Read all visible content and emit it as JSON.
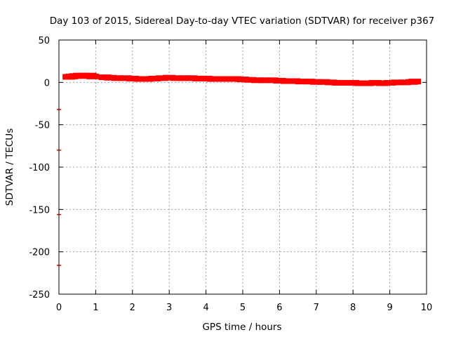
{
  "chart_data": {
    "type": "scatter",
    "title": "Day 103 of 2015, Sidereal Day-to-day VTEC variation (SDTVAR) for receiver p367",
    "xlabel": "GPS time / hours",
    "ylabel": "SDTVAR / TECUs",
    "xlim": [
      0,
      10
    ],
    "ylim": [
      -250,
      50
    ],
    "grid": true,
    "xticks": [
      0,
      1,
      2,
      3,
      4,
      5,
      6,
      7,
      8,
      9,
      10
    ],
    "yticks": [
      50,
      0,
      -50,
      -100,
      -150,
      -200,
      -250
    ],
    "colors": {
      "series": "#ff0000",
      "grid": "#a0a0a0",
      "axis": "#000000"
    },
    "series": [
      {
        "name": "SDTVAR",
        "x": [
          0.27,
          0.35,
          0.45,
          0.55,
          0.65,
          0.75,
          0.85,
          0.92,
          1.25,
          1.4,
          1.6,
          1.8,
          2.0,
          2.2,
          2.4,
          2.6,
          2.8,
          3.0,
          3.2,
          3.4,
          3.6,
          3.8,
          4.0,
          4.2,
          4.4,
          4.6,
          4.8,
          5.0,
          5.2,
          5.4,
          5.6,
          5.8,
          6.0,
          6.2,
          6.4,
          6.6,
          6.8,
          7.0,
          7.2,
          7.4,
          7.6,
          7.8,
          8.0,
          8.2,
          8.4,
          8.6,
          8.8,
          9.0,
          9.2,
          9.4,
          9.6,
          9.68
        ],
        "y": [
          6.5,
          7.0,
          7.5,
          8.0,
          8.0,
          7.5,
          8.0,
          7.0,
          6.0,
          5.5,
          5.0,
          5.0,
          4.5,
          4.0,
          4.0,
          4.5,
          5.0,
          5.5,
          5.0,
          5.0,
          5.0,
          4.5,
          4.5,
          4.0,
          4.0,
          4.0,
          4.0,
          3.5,
          3.0,
          2.5,
          2.5,
          2.5,
          2.0,
          1.5,
          1.5,
          1.0,
          1.0,
          0.5,
          0.5,
          0.0,
          -0.5,
          -0.5,
          -0.5,
          -1.0,
          -1.0,
          -0.5,
          -1.0,
          -0.5,
          0.0,
          0.0,
          0.5,
          1.0
        ]
      }
    ],
    "outliers": {
      "name": "left-edge markers",
      "x": [
        0.0,
        0.0,
        0.0,
        0.0
      ],
      "y": [
        -32,
        -80,
        -156,
        -216
      ]
    }
  }
}
